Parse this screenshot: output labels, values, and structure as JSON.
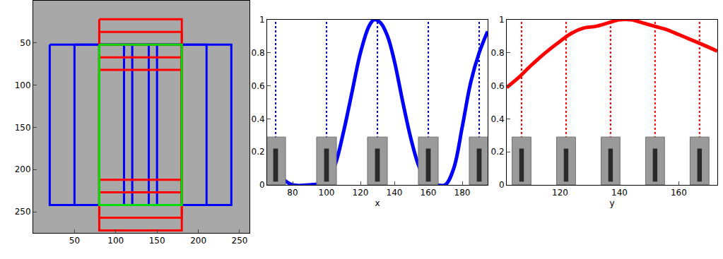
{
  "chart_data": [
    {
      "type": "boxes",
      "xlim": [
        0,
        262
      ],
      "ylim": [
        275,
        0
      ],
      "xticks": [
        50,
        100,
        150,
        200,
        250
      ],
      "yticks": [
        50,
        100,
        150,
        200,
        250
      ],
      "series": [
        {
          "color": "#0000ff",
          "values": [
            [
              20,
              120,
              52,
              242
            ],
            [
              50,
              150,
              52,
              242
            ],
            [
              80,
              180,
              52,
              242
            ],
            [
              110,
              210,
              52,
              242
            ],
            [
              140,
              240,
              52,
              242
            ]
          ]
        },
        {
          "color": "#ff0000",
          "values": [
            [
              80,
              180,
              22,
              212
            ],
            [
              80,
              180,
              37,
              227
            ],
            [
              80,
              180,
              52,
              242
            ],
            [
              80,
              180,
              67,
              257
            ],
            [
              80,
              180,
              82,
              272
            ]
          ]
        },
        {
          "color": "#00dd00",
          "values": [
            [
              80,
              180,
              52,
              242
            ]
          ]
        }
      ]
    },
    {
      "type": "line",
      "x_label": "x",
      "color": "#0000ff",
      "x": [
        65,
        70,
        75,
        80,
        90,
        100,
        105,
        110,
        115,
        120,
        125,
        128,
        132,
        136,
        140,
        145,
        150,
        155,
        160,
        165,
        170,
        175,
        180,
        185,
        190,
        195
      ],
      "values": [
        0.12,
        0.08,
        0.03,
        0.0,
        0.0,
        0.02,
        0.12,
        0.32,
        0.56,
        0.8,
        0.96,
        1.0,
        0.98,
        0.9,
        0.75,
        0.5,
        0.27,
        0.1,
        0.02,
        0.0,
        0.0,
        0.1,
        0.35,
        0.62,
        0.8,
        0.93
      ],
      "vlines": [
        70,
        100,
        130,
        160,
        190
      ],
      "line_style": "dot",
      "xlim": [
        65,
        195
      ],
      "ylim": [
        0,
        1
      ],
      "xticks": [
        80,
        100,
        120,
        140,
        160,
        180
      ],
      "yticks": [
        0,
        0.2,
        0.4,
        0.6,
        0.8,
        1
      ]
    },
    {
      "type": "line",
      "x_label": "y",
      "color": "#ff0000",
      "x": [
        102,
        106,
        110,
        115,
        120,
        124,
        128,
        132,
        136,
        140,
        144,
        148,
        152,
        156,
        160,
        164,
        168,
        173
      ],
      "values": [
        0.59,
        0.65,
        0.72,
        0.8,
        0.87,
        0.92,
        0.95,
        0.96,
        0.98,
        1.0,
        1.0,
        0.98,
        0.96,
        0.94,
        0.91,
        0.88,
        0.85,
        0.81
      ],
      "vlines": [
        107,
        122,
        137,
        152,
        167
      ],
      "line_style": "dot",
      "xlim": [
        102,
        173
      ],
      "ylim": [
        0,
        1
      ],
      "xticks": [
        120,
        140,
        160
      ],
      "yticks": [
        0,
        0.2,
        0.4,
        0.6,
        0.8,
        1
      ]
    }
  ]
}
